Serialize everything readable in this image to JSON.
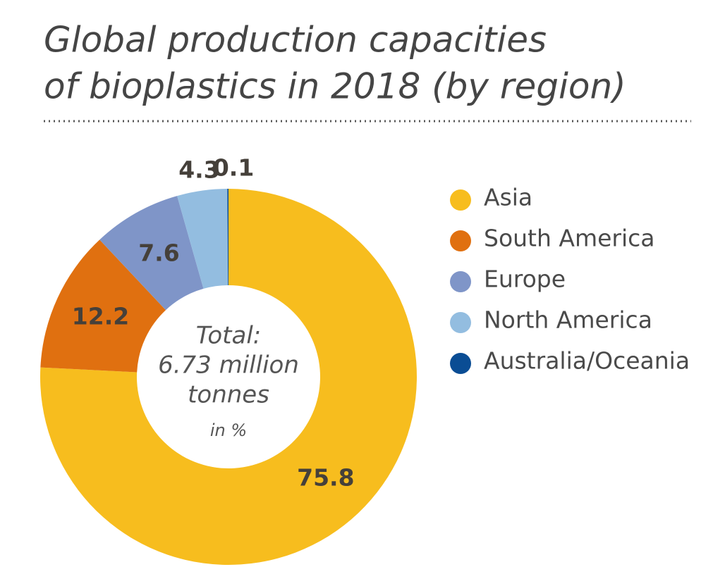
{
  "chart_data": {
    "type": "donut",
    "title": [
      "Global production capacities",
      "of bioplastics in 2018 (by region)"
    ],
    "categories": [
      "Asia",
      "South America",
      "Europe",
      "North America",
      "Australia/Oceania"
    ],
    "values": [
      75.8,
      12.2,
      7.6,
      4.3,
      0.1
    ],
    "colors": [
      "#f7bd1e",
      "#e07010",
      "#7f95c8",
      "#93bde0",
      "#0a4d94"
    ],
    "center_text": [
      "Total:",
      "6.73 million",
      "tonnes"
    ],
    "unit_note": "in %",
    "legend": "right"
  }
}
